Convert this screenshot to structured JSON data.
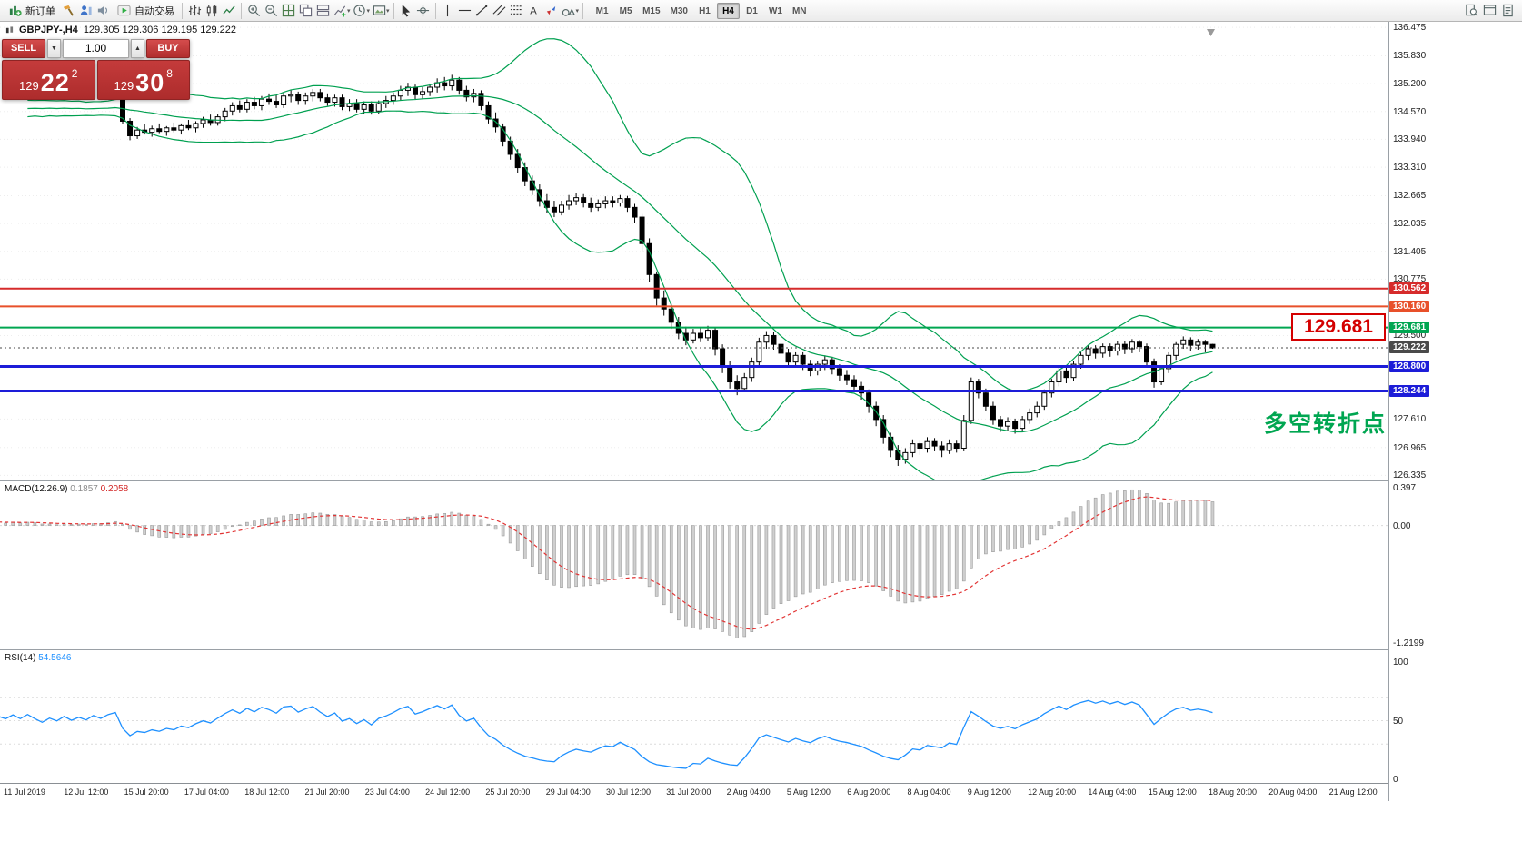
{
  "toolbar": {
    "new_order_label": "新订单",
    "autotrade_label": "自动交易",
    "timeframes": [
      "M1",
      "M5",
      "M15",
      "M30",
      "H1",
      "H4",
      "D1",
      "W1",
      "MN"
    ],
    "active_timeframe": "H4"
  },
  "symbol_header": {
    "symbol": "GBPJPY-,H4",
    "ohlc": "129.305 129.306 129.195 129.222"
  },
  "trade_panel": {
    "sell_label": "SELL",
    "buy_label": "BUY",
    "volume": "1.00",
    "sell_price_small": "129",
    "sell_price_big": "22",
    "sell_price_sup": "2",
    "buy_price_small": "129",
    "buy_price_big": "30",
    "buy_price_sup": "8"
  },
  "annotations": {
    "big_price_label": "129.681",
    "cn_note": "多空转折点"
  },
  "indicators": {
    "macd_label": "MACD(12.26.9)",
    "macd_value_main": "0.1857",
    "macd_value_signal": "0.2058",
    "rsi_label": "RSI(14)",
    "rsi_value": "54.5646"
  },
  "price_axis": {
    "ticks": [
      "136.475",
      "135.830",
      "135.200",
      "134.570",
      "133.940",
      "133.310",
      "132.665",
      "132.035",
      "131.405",
      "130.775",
      "129.500",
      "127.610",
      "126.965",
      "126.335"
    ],
    "tags": [
      {
        "label": "130.562",
        "price": 130.562,
        "color": "#d62b2b",
        "line": "solid",
        "width": 2
      },
      {
        "label": "130.160",
        "price": 130.16,
        "color": "#e8502a",
        "line": "solid",
        "width": 2
      },
      {
        "label": "129.681",
        "price": 129.681,
        "color": "#00a651",
        "line": "solid",
        "width": 2
      },
      {
        "label": "129.222",
        "price": 129.222,
        "color": "#4a4a4a",
        "line": "dotted",
        "width": 1
      },
      {
        "label": "128.800",
        "price": 128.8,
        "color": "#1d1dd8",
        "line": "solid",
        "width": 3
      },
      {
        "label": "128.244",
        "price": 128.244,
        "color": "#1d1dd8",
        "line": "solid",
        "width": 3
      }
    ]
  },
  "macd_axis": [
    "0.397",
    "0.00",
    "-1.2199"
  ],
  "rsi_axis": [
    "100",
    "50",
    "0"
  ],
  "time_axis": [
    "11 Jul 2019",
    "12 Jul 12:00",
    "15 Jul 20:00",
    "17 Jul 04:00",
    "18 Jul 12:00",
    "21 Jul 20:00",
    "23 Jul 04:00",
    "24 Jul 12:00",
    "25 Jul 20:00",
    "29 Jul 04:00",
    "30 Jul 12:00",
    "31 Jul 20:00",
    "2 Aug 04:00",
    "5 Aug 12:00",
    "6 Aug 20:00",
    "8 Aug 04:00",
    "9 Aug 12:00",
    "12 Aug 20:00",
    "14 Aug 04:00",
    "15 Aug 12:00",
    "18 Aug 20:00",
    "20 Aug 04:00",
    "21 Aug 12:00"
  ],
  "chart_data": [
    {
      "type": "candlestick",
      "title": "GBPJPY- H4",
      "ylim": [
        126.2,
        136.6
      ],
      "overlays": {
        "bollinger": {
          "period": 20,
          "deviation": 2,
          "color": "#00a050"
        }
      },
      "hlines": [
        130.562,
        130.16,
        129.681,
        129.222,
        128.8,
        128.244
      ],
      "warmup_closes": [
        134.5,
        134.62,
        134.48,
        134.7,
        134.55,
        134.75,
        134.6,
        134.8,
        134.65,
        134.55,
        134.7,
        134.6,
        134.78,
        134.65,
        134.5,
        134.66,
        134.58,
        134.72,
        134.6,
        134.75,
        134.62,
        134.5,
        134.64,
        134.55,
        134.7,
        134.58,
        134.68,
        134.6,
        134.74,
        134.66,
        134.78,
        134.85
      ],
      "ohlc": [
        [
          134.9,
          134.95,
          134.28,
          134.35
        ],
        [
          134.35,
          134.42,
          133.92,
          134.02
        ],
        [
          134.02,
          134.22,
          133.95,
          134.15
        ],
        [
          134.15,
          134.28,
          134.05,
          134.1
        ],
        [
          134.1,
          134.25,
          134.0,
          134.18
        ],
        [
          134.18,
          134.3,
          134.08,
          134.12
        ],
        [
          134.12,
          134.24,
          134.02,
          134.2
        ],
        [
          134.2,
          134.32,
          134.1,
          134.15
        ],
        [
          134.15,
          134.3,
          134.05,
          134.25
        ],
        [
          134.25,
          134.38,
          134.15,
          134.2
        ],
        [
          134.2,
          134.35,
          134.1,
          134.3
        ],
        [
          134.3,
          134.45,
          134.2,
          134.38
        ],
        [
          134.38,
          134.5,
          134.25,
          134.32
        ],
        [
          134.32,
          134.52,
          134.25,
          134.45
        ],
        [
          134.45,
          134.65,
          134.35,
          134.58
        ],
        [
          134.58,
          134.78,
          134.48,
          134.7
        ],
        [
          134.7,
          134.82,
          134.55,
          134.62
        ],
        [
          134.62,
          134.85,
          134.55,
          134.78
        ],
        [
          134.78,
          134.9,
          134.62,
          134.7
        ],
        [
          134.7,
          134.92,
          134.6,
          134.85
        ],
        [
          134.85,
          134.98,
          134.72,
          134.8
        ],
        [
          134.8,
          134.95,
          134.65,
          134.72
        ],
        [
          134.72,
          135.0,
          134.65,
          134.92
        ],
        [
          134.92,
          135.05,
          134.78,
          134.95
        ],
        [
          134.95,
          135.02,
          134.72,
          134.82
        ],
        [
          134.82,
          135.0,
          134.72,
          134.92
        ],
        [
          134.92,
          135.08,
          134.8,
          135.0
        ],
        [
          135.0,
          135.08,
          134.8,
          134.88
        ],
        [
          134.88,
          134.98,
          134.7,
          134.78
        ],
        [
          134.78,
          134.95,
          134.68,
          134.88
        ],
        [
          134.88,
          134.95,
          134.6,
          134.68
        ],
        [
          134.68,
          134.85,
          134.58,
          134.75
        ],
        [
          134.75,
          134.85,
          134.55,
          134.62
        ],
        [
          134.62,
          134.8,
          134.52,
          134.72
        ],
        [
          134.72,
          134.8,
          134.5,
          134.58
        ],
        [
          134.58,
          134.82,
          134.52,
          134.75
        ],
        [
          134.75,
          134.92,
          134.65,
          134.82
        ],
        [
          134.82,
          135.0,
          134.72,
          134.92
        ],
        [
          134.92,
          135.15,
          134.82,
          135.05
        ],
        [
          135.05,
          135.22,
          134.92,
          135.12
        ],
        [
          135.12,
          135.18,
          134.85,
          134.95
        ],
        [
          134.95,
          135.12,
          134.85,
          135.02
        ],
        [
          135.02,
          135.2,
          134.92,
          135.12
        ],
        [
          135.12,
          135.32,
          135.0,
          135.22
        ],
        [
          135.22,
          135.35,
          135.05,
          135.15
        ],
        [
          135.15,
          135.4,
          135.05,
          135.28
        ],
        [
          135.28,
          135.35,
          134.95,
          135.05
        ],
        [
          135.05,
          135.15,
          134.8,
          134.9
        ],
        [
          134.9,
          135.08,
          134.78,
          134.98
        ],
        [
          134.98,
          135.05,
          134.6,
          134.7
        ],
        [
          134.7,
          134.8,
          134.3,
          134.4
        ],
        [
          134.4,
          134.55,
          134.1,
          134.22
        ],
        [
          134.22,
          134.3,
          133.78,
          133.9
        ],
        [
          133.9,
          134.0,
          133.48,
          133.6
        ],
        [
          133.6,
          133.72,
          133.18,
          133.3
        ],
        [
          133.3,
          133.42,
          132.88,
          133.0
        ],
        [
          133.0,
          133.12,
          132.68,
          132.8
        ],
        [
          132.8,
          132.92,
          132.42,
          132.55
        ],
        [
          132.55,
          132.7,
          132.28,
          132.4
        ],
        [
          132.4,
          132.55,
          132.18,
          132.3
        ],
        [
          132.3,
          132.55,
          132.22,
          132.45
        ],
        [
          132.45,
          132.68,
          132.35,
          132.55
        ],
        [
          132.55,
          132.72,
          132.45,
          132.62
        ],
        [
          132.62,
          132.7,
          132.4,
          132.5
        ],
        [
          132.5,
          132.62,
          132.3,
          132.4
        ],
        [
          132.4,
          132.58,
          132.32,
          132.48
        ],
        [
          132.48,
          132.65,
          132.38,
          132.55
        ],
        [
          132.55,
          132.65,
          132.4,
          132.5
        ],
        [
          132.5,
          132.68,
          132.42,
          132.6
        ],
        [
          132.6,
          132.66,
          132.3,
          132.4
        ],
        [
          132.4,
          132.48,
          132.05,
          132.18
        ],
        [
          132.18,
          132.25,
          131.4,
          131.58
        ],
        [
          131.58,
          131.7,
          130.72,
          130.88
        ],
        [
          130.88,
          130.95,
          130.18,
          130.35
        ],
        [
          130.35,
          130.52,
          129.95,
          130.1
        ],
        [
          130.1,
          130.22,
          129.65,
          129.8
        ],
        [
          129.8,
          129.92,
          129.42,
          129.55
        ],
        [
          129.55,
          129.7,
          129.28,
          129.4
        ],
        [
          129.4,
          129.65,
          129.32,
          129.55
        ],
        [
          129.55,
          129.68,
          129.35,
          129.45
        ],
        [
          129.45,
          129.72,
          129.38,
          129.62
        ],
        [
          129.62,
          129.68,
          129.05,
          129.2
        ],
        [
          129.2,
          129.3,
          128.65,
          128.8
        ],
        [
          128.8,
          128.92,
          128.3,
          128.45
        ],
        [
          128.45,
          128.6,
          128.15,
          128.3
        ],
        [
          128.3,
          128.65,
          128.22,
          128.55
        ],
        [
          128.55,
          129.0,
          128.45,
          128.9
        ],
        [
          128.9,
          129.45,
          128.82,
          129.35
        ],
        [
          129.35,
          129.6,
          129.2,
          129.5
        ],
        [
          129.5,
          129.58,
          129.18,
          129.3
        ],
        [
          129.3,
          129.42,
          128.98,
          129.1
        ],
        [
          129.1,
          129.2,
          128.78,
          128.9
        ],
        [
          128.9,
          129.12,
          128.8,
          129.05
        ],
        [
          129.05,
          129.12,
          128.72,
          128.85
        ],
        [
          128.85,
          128.95,
          128.58,
          128.7
        ],
        [
          128.7,
          128.92,
          128.6,
          128.85
        ],
        [
          128.85,
          129.05,
          128.72,
          128.95
        ],
        [
          128.95,
          129.02,
          128.62,
          128.75
        ],
        [
          128.75,
          128.85,
          128.48,
          128.6
        ],
        [
          128.6,
          128.72,
          128.38,
          128.5
        ],
        [
          128.5,
          128.6,
          128.22,
          128.35
        ],
        [
          128.35,
          128.45,
          128.05,
          128.2
        ],
        [
          128.2,
          128.28,
          127.75,
          127.9
        ],
        [
          127.9,
          128.0,
          127.45,
          127.6
        ],
        [
          127.6,
          127.7,
          127.05,
          127.2
        ],
        [
          127.2,
          127.3,
          126.75,
          126.9
        ],
        [
          126.9,
          127.02,
          126.55,
          126.7
        ],
        [
          126.7,
          126.95,
          126.6,
          126.85
        ],
        [
          126.85,
          127.15,
          126.75,
          127.05
        ],
        [
          127.05,
          127.12,
          126.8,
          126.95
        ],
        [
          126.95,
          127.2,
          126.85,
          127.1
        ],
        [
          127.1,
          127.18,
          126.88,
          127.0
        ],
        [
          127.0,
          127.1,
          126.75,
          126.9
        ],
        [
          126.9,
          127.15,
          126.82,
          127.05
        ],
        [
          127.05,
          127.12,
          126.85,
          126.95
        ],
        [
          126.95,
          127.7,
          126.88,
          127.58
        ],
        [
          127.58,
          128.55,
          127.5,
          128.45
        ],
        [
          128.45,
          128.52,
          128.08,
          128.2
        ],
        [
          128.2,
          128.3,
          127.8,
          127.9
        ],
        [
          127.9,
          128.0,
          127.48,
          127.6
        ],
        [
          127.6,
          127.68,
          127.32,
          127.45
        ],
        [
          127.45,
          127.65,
          127.35,
          127.55
        ],
        [
          127.55,
          127.62,
          127.28,
          127.4
        ],
        [
          127.4,
          127.68,
          127.32,
          127.6
        ],
        [
          127.6,
          127.85,
          127.5,
          127.75
        ],
        [
          127.75,
          128.0,
          127.65,
          127.9
        ],
        [
          127.9,
          128.28,
          127.82,
          128.2
        ],
        [
          128.2,
          128.52,
          128.1,
          128.45
        ],
        [
          128.45,
          128.78,
          128.35,
          128.7
        ],
        [
          128.7,
          128.78,
          128.42,
          128.55
        ],
        [
          128.55,
          128.92,
          128.48,
          128.85
        ],
        [
          128.85,
          129.12,
          128.75,
          129.05
        ],
        [
          129.05,
          129.28,
          128.95,
          129.2
        ],
        [
          129.2,
          129.28,
          128.98,
          129.1
        ],
        [
          129.1,
          129.32,
          129.0,
          129.25
        ],
        [
          129.25,
          129.32,
          129.02,
          129.15
        ],
        [
          129.15,
          129.38,
          129.05,
          129.3
        ],
        [
          129.3,
          129.38,
          129.08,
          129.2
        ],
        [
          129.2,
          129.42,
          129.1,
          129.35
        ],
        [
          129.35,
          129.4,
          129.12,
          129.25
        ],
        [
          129.25,
          129.32,
          128.78,
          128.9
        ],
        [
          128.9,
          128.98,
          128.32,
          128.45
        ],
        [
          128.45,
          128.82,
          128.38,
          128.75
        ],
        [
          128.75,
          129.12,
          128.65,
          129.05
        ],
        [
          129.05,
          129.35,
          128.95,
          129.3
        ],
        [
          129.3,
          129.48,
          129.2,
          129.4
        ],
        [
          129.4,
          129.46,
          129.15,
          129.28
        ],
        [
          129.28,
          129.42,
          129.18,
          129.35
        ],
        [
          129.35,
          129.4,
          129.12,
          129.3
        ],
        [
          129.3,
          129.31,
          129.2,
          129.22
        ]
      ]
    },
    {
      "type": "bar",
      "name": "MACD(12,26,9)",
      "note": "histogram = EMA12-EMA26 of closes; signal = EMA9 of MACD",
      "ylim": [
        -1.3,
        0.46
      ],
      "colors": {
        "histogram": "#cfcfcf",
        "signal": "#e23434"
      },
      "current": {
        "macd": 0.1857,
        "signal": 0.2058
      }
    },
    {
      "type": "line",
      "name": "RSI(14)",
      "ylim": [
        0,
        100
      ],
      "color": "#1e90ff",
      "levels": [
        30,
        50,
        70
      ],
      "current": 54.5646
    }
  ]
}
